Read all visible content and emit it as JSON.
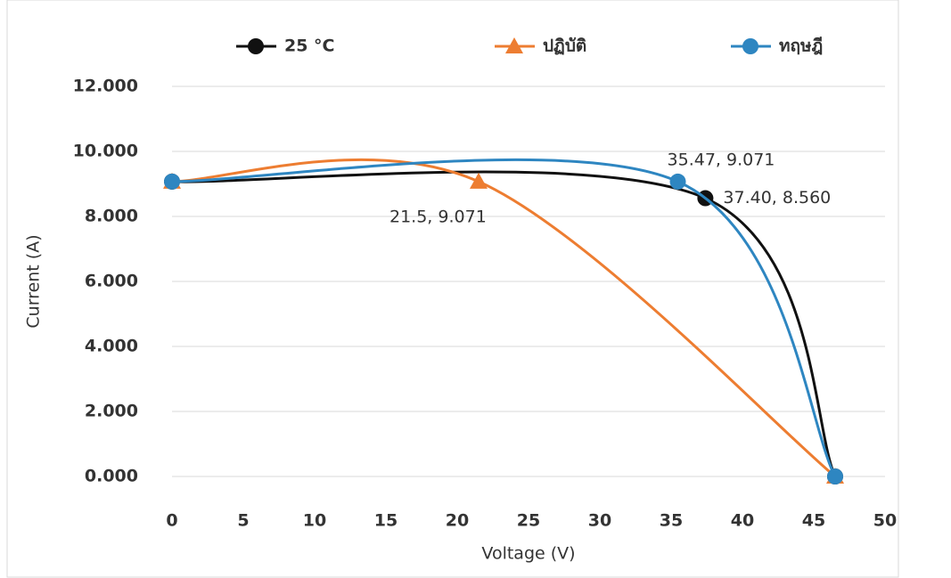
{
  "chart_data": {
    "type": "scatter",
    "x_label": "Voltage (V)",
    "y_label": "Current (A)",
    "xlim": [
      0,
      50
    ],
    "xticks": [
      0,
      5,
      10,
      15,
      20,
      25,
      30,
      35,
      40,
      45,
      50
    ],
    "ylim": [
      0,
      12
    ],
    "yticks": [
      {
        "value": 0,
        "label": "0.000"
      },
      {
        "value": 2,
        "label": "2.000"
      },
      {
        "value": 4,
        "label": "4.000"
      },
      {
        "value": 6,
        "label": "6.000"
      },
      {
        "value": 8,
        "label": "8.000"
      },
      {
        "value": 10,
        "label": "10.000"
      },
      {
        "value": 12,
        "label": "12.000"
      }
    ],
    "grid": true,
    "smooth": true,
    "legend": "top",
    "series": [
      {
        "name": "25 °C",
        "color": "#111111",
        "marker": "circle",
        "x": [
          0,
          37.4,
          46.5
        ],
        "values": [
          9.071,
          8.56,
          0
        ],
        "value_labels": [
          null,
          "37.40, 8.560",
          null
        ]
      },
      {
        "name": "ปฏิบัติ",
        "color": "#ed7d31",
        "marker": "triangle",
        "x": [
          0,
          21.5,
          46.5
        ],
        "values": [
          9.071,
          9.071,
          0
        ],
        "value_labels": [
          null,
          "21.5, 9.071",
          null
        ]
      },
      {
        "name": "ทฤษฎี",
        "color": "#2e86c1",
        "marker": "circle",
        "x": [
          0,
          35.47,
          46.5
        ],
        "values": [
          9.071,
          9.071,
          0
        ],
        "value_labels": [
          null,
          "35.47, 9.071",
          null
        ]
      }
    ]
  }
}
